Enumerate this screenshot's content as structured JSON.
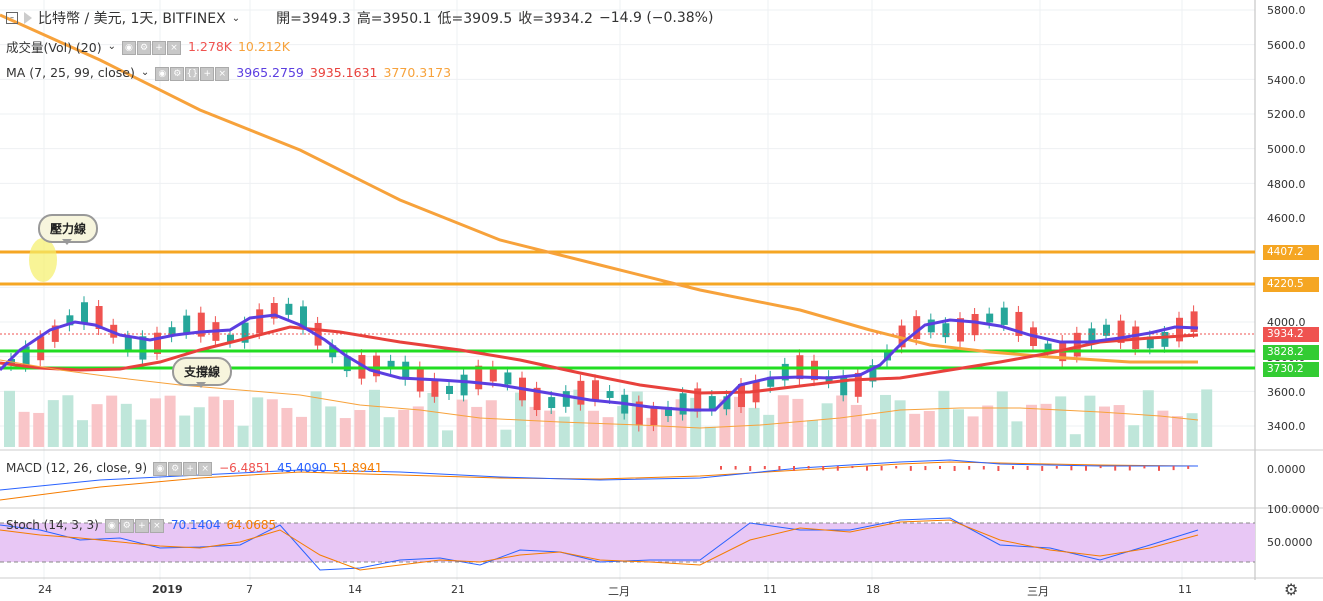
{
  "header": {
    "symbol_title": "比特幣 / 美元, 1天, BITFINEX",
    "open": "開=3949.3",
    "high": "高=3950.1",
    "low": "低=3909.5",
    "close": "收=3934.2",
    "change": "−14.9 (−0.38%)"
  },
  "volume_legend": {
    "label": "成交量(Vol) (20)",
    "v1": "1.278K",
    "v2": "10.212K"
  },
  "ma_legend": {
    "label": "MA (7, 25, 99, close)",
    "v1": "3965.2759",
    "v2": "3935.1631",
    "v3": "3770.3173"
  },
  "macd_legend": {
    "label": "MACD (12, 26, close, 9)",
    "v1": "−6.4851",
    "v2": "45.4090",
    "v3": "51.8941"
  },
  "stoch_legend": {
    "label": "Stoch (14, 3, 3)",
    "v1": "70.1404",
    "v2": "64.0685"
  },
  "annotations": {
    "resistance": "壓力線",
    "support": "支撐線"
  },
  "price_axis": {
    "ticks": [
      "5800.0",
      "5600.0",
      "5400.0",
      "5200.0",
      "5000.0",
      "4800.0",
      "4600.0",
      "4400.0",
      "4200.0",
      "4000.0",
      "3800.0",
      "3600.0",
      "3400.0"
    ],
    "markers": [
      {
        "label": "4407.2",
        "color": "#f5a623"
      },
      {
        "label": "4220.5",
        "color": "#f5a623"
      },
      {
        "label": "3934.2",
        "color": "#ef5350"
      },
      {
        "label": "3828.2",
        "color": "#33cc33"
      },
      {
        "label": "3730.2",
        "color": "#33cc33"
      }
    ]
  },
  "macd_axis": {
    "ticks": [
      "0.0000"
    ]
  },
  "stoch_axis": {
    "ticks": [
      "100.0000",
      "50.0000"
    ]
  },
  "time_axis": [
    "24",
    "2019",
    "7",
    "14",
    "21",
    "二月",
    "11",
    "18",
    "三月",
    "11"
  ],
  "colors": {
    "up": "#26a69a",
    "down": "#ef5350",
    "ma7": "#5b3ee0",
    "ma25": "#e8413c",
    "ma99": "#f7a23b",
    "hline_orange": "#f5a623",
    "hline_green": "#22dd22"
  },
  "chart_data": {
    "type": "candlestick",
    "title": "比特幣 / 美元, 1天, BITFINEX",
    "ylim": [
      3300,
      5850
    ],
    "horizontal_lines": [
      4407.2,
      4220.5,
      3828.2,
      3730.2
    ],
    "series": [
      {
        "name": "MA 7",
        "last": 3965.2759
      },
      {
        "name": "MA 25",
        "last": 3935.1631
      },
      {
        "name": "MA 99",
        "last": 3770.3173
      }
    ]
  },
  "settings_icon": "gear-icon"
}
